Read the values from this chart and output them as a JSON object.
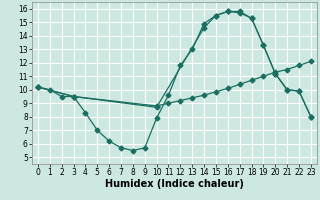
{
  "xlabel": "Humidex (Indice chaleur)",
  "bg_color": "#cce8e0",
  "grid_color": "#ffffff",
  "line_color": "#1a6e62",
  "xlim": [
    -0.5,
    23.5
  ],
  "ylim": [
    4.5,
    16.5
  ],
  "xticks": [
    0,
    1,
    2,
    3,
    4,
    5,
    6,
    7,
    8,
    9,
    10,
    11,
    12,
    13,
    14,
    15,
    16,
    17,
    18,
    19,
    20,
    21,
    22,
    23
  ],
  "yticks": [
    5,
    6,
    7,
    8,
    9,
    10,
    11,
    12,
    13,
    14,
    15,
    16
  ],
  "line1_x": [
    0,
    1,
    2,
    3,
    4,
    5,
    6,
    7,
    8,
    9,
    10,
    11,
    12,
    13,
    14,
    15,
    16,
    17,
    18,
    19,
    20,
    21,
    22,
    23
  ],
  "line1_y": [
    10.2,
    10.0,
    9.5,
    9.5,
    8.3,
    7.0,
    6.2,
    5.7,
    5.5,
    5.7,
    7.9,
    9.6,
    11.8,
    13.0,
    14.9,
    15.5,
    15.8,
    15.7,
    15.3,
    13.3,
    11.2,
    10.0,
    9.9,
    8.0
  ],
  "line2_x": [
    0,
    3,
    10,
    11,
    12,
    13,
    14,
    15,
    16,
    17,
    18,
    19,
    20,
    21,
    22,
    23
  ],
  "line2_y": [
    10.2,
    9.5,
    8.8,
    9.0,
    9.2,
    9.4,
    9.6,
    9.85,
    10.1,
    10.4,
    10.7,
    11.0,
    11.3,
    11.5,
    11.8,
    12.1
  ],
  "line3_x": [
    0,
    3,
    10,
    14,
    15,
    16,
    17,
    18,
    19,
    20,
    21,
    22,
    23
  ],
  "line3_y": [
    10.2,
    9.5,
    8.7,
    14.6,
    15.5,
    15.8,
    15.8,
    15.3,
    13.3,
    11.2,
    10.0,
    9.9,
    8.0
  ],
  "marker_size": 2.5,
  "lw": 0.9,
  "font_size_label": 7,
  "font_size_tick": 5.5
}
